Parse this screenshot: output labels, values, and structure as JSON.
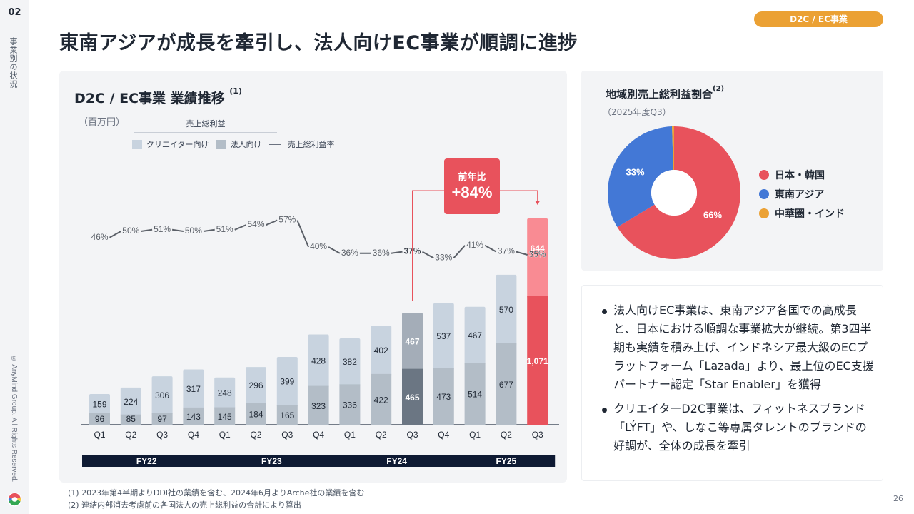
{
  "section": {
    "number": "02",
    "label": "事業別の状況"
  },
  "copyright": "© AnyMind Group. All Rights Reserved.",
  "page_title": "東南アジアが成長を牽引し、法人向けEC事業が順調に進捗",
  "tag": "D2C / EC事業",
  "bar_card": {
    "title": "D2C / EC事業 業績推移",
    "title_note": "(1)",
    "unit": "（百万円）",
    "legend_group": "売上総利益",
    "legend": [
      {
        "label": "クリエイター向け",
        "color": "#c8d3df"
      },
      {
        "label": "法人向け",
        "color": "#b3bdc7"
      },
      {
        "label": "売上総利益率",
        "color": "#5b6068"
      }
    ],
    "callout": {
      "label": "前年比",
      "value": "+84%",
      "color": "#e8525c"
    }
  },
  "chart_data": [
    {
      "type": "bar",
      "stacked": true,
      "title": "D2C / EC事業 業績推移",
      "ylabel": "百万円",
      "categories": [
        "Q1",
        "Q2",
        "Q3",
        "Q4",
        "Q1",
        "Q2",
        "Q3",
        "Q4",
        "Q1",
        "Q2",
        "Q3",
        "Q4",
        "Q1",
        "Q2",
        "Q3"
      ],
      "fiscal_years": [
        {
          "label": "FY22",
          "quarters": 4
        },
        {
          "label": "FY23",
          "quarters": 4
        },
        {
          "label": "FY24",
          "quarters": 4
        },
        {
          "label": "FY25",
          "quarters": 3
        }
      ],
      "series": [
        {
          "name": "法人向け",
          "values": [
            96,
            85,
            97,
            143,
            145,
            184,
            165,
            323,
            336,
            422,
            465,
            473,
            514,
            677,
            1071
          ]
        },
        {
          "name": "クリエイター向け",
          "values": [
            159,
            224,
            306,
            317,
            248,
            296,
            399,
            428,
            382,
            402,
            467,
            537,
            467,
            570,
            644
          ]
        }
      ],
      "line_series": {
        "name": "売上総利益率",
        "unit": "%",
        "values": [
          46,
          50,
          51,
          50,
          51,
          54,
          57,
          40,
          36,
          36,
          37,
          33,
          41,
          37,
          35
        ]
      },
      "highlight_indices": [
        10,
        14
      ],
      "yoy_comparison": {
        "from_index": 10,
        "to_index": 14,
        "label": "前年比",
        "value": "+84%"
      }
    },
    {
      "type": "pie",
      "donut": true,
      "title": "地域別売上総利益割合",
      "subtitle": "（2025年度Q3）",
      "slices": [
        {
          "label": "日本・韓国",
          "value": 66,
          "color": "#e8525c"
        },
        {
          "label": "東南アジア",
          "value": 33,
          "color": "#4378d6"
        },
        {
          "label": "中華圏・インド",
          "value": 0.5,
          "color": "#eba134"
        }
      ],
      "data_labels": [
        "66%",
        "33%",
        ""
      ]
    }
  ],
  "pie_card": {
    "title": "地域別売上総利益割合",
    "title_note": "(2)",
    "subtitle": "（2025年度Q3）",
    "legend": [
      {
        "label": "日本・韓国",
        "color": "#e8525c"
      },
      {
        "label": "東南アジア",
        "color": "#4378d6"
      },
      {
        "label": "中華圏・インド",
        "color": "#eba134"
      }
    ]
  },
  "bullets": [
    "法人向けEC事業は、東南アジア各国での高成長と、日本における順調な事業拡大が継続。第3四半期も実績を積み上げ、インドネシア最大級のECプラットフォーム「Lazada」より、最上位のEC支援パートナー認定「Star Enabler」を獲得",
    "クリエイターD2C事業は、フィットネスブランド「LÝFT」や、しなこ等専属タレントのブランドの好調が、全体の成長を牽引"
  ],
  "footnotes": [
    "(1) 2023年第4半期よりDDI社の業績を含む、2024年6月よりArche社の業績を含む",
    "(2) 連結内部消去考慮前の各国法人の売上総利益の合計により算出"
  ],
  "page_number": "26"
}
